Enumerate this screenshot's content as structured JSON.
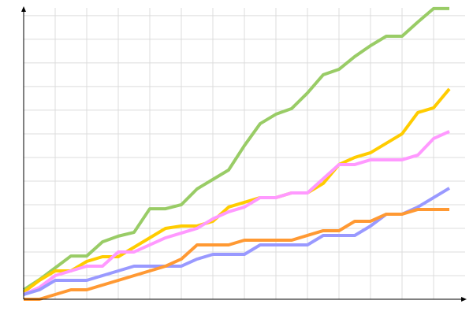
{
  "chart_data": {
    "type": "line",
    "x": [
      0,
      1,
      2,
      3,
      4,
      5,
      6,
      7,
      8,
      9,
      10,
      11,
      12,
      13,
      14,
      15,
      16,
      17,
      18,
      19,
      20,
      21,
      22,
      23,
      24,
      25,
      26,
      27
    ],
    "series": [
      {
        "color": "#99cc66",
        "values": [
          0.4,
          0.83,
          1.33,
          1.83,
          1.83,
          2.43,
          2.67,
          2.83,
          3.83,
          3.83,
          4.0,
          4.67,
          5.07,
          5.47,
          6.5,
          7.43,
          7.83,
          8.07,
          8.73,
          9.5,
          9.73,
          10.27,
          10.73,
          11.13,
          11.13,
          11.73,
          12.3,
          12.3
        ]
      },
      {
        "color": "#ffcc00",
        "values": [
          0.3,
          0.8,
          1.2,
          1.2,
          1.6,
          1.8,
          1.8,
          2.2,
          2.6,
          3.0,
          3.1,
          3.1,
          3.3,
          3.9,
          4.1,
          4.3,
          4.3,
          4.5,
          4.5,
          4.9,
          5.7,
          6.0,
          6.2,
          6.6,
          7.0,
          7.9,
          8.1,
          8.9
        ]
      },
      {
        "color": "#ff99ff",
        "values": [
          0.2,
          0.5,
          1.0,
          1.2,
          1.4,
          1.4,
          2.0,
          2.0,
          2.3,
          2.6,
          2.8,
          3.0,
          3.4,
          3.7,
          3.9,
          4.3,
          4.3,
          4.5,
          4.5,
          5.1,
          5.7,
          5.7,
          5.9,
          5.9,
          5.9,
          6.1,
          6.8,
          7.1
        ]
      },
      {
        "color": "#9999ff",
        "values": [
          0.2,
          0.4,
          0.8,
          0.8,
          0.8,
          1.0,
          1.2,
          1.4,
          1.4,
          1.4,
          1.4,
          1.7,
          1.9,
          1.9,
          1.9,
          2.3,
          2.3,
          2.3,
          2.3,
          2.7,
          2.7,
          2.7,
          3.1,
          3.6,
          3.6,
          3.9,
          4.3,
          4.7
        ]
      },
      {
        "color": "#ff9933",
        "values": [
          0,
          0,
          0.2,
          0.4,
          0.4,
          0.6,
          0.8,
          1.0,
          1.2,
          1.4,
          1.7,
          2.3,
          2.3,
          2.3,
          2.5,
          2.5,
          2.5,
          2.5,
          2.7,
          2.9,
          2.9,
          3.3,
          3.3,
          3.6,
          3.6,
          3.8,
          3.8,
          3.8
        ]
      }
    ],
    "xlim": [
      0,
      28
    ],
    "ylim": [
      0,
      12.33
    ],
    "xticks": [
      0,
      2,
      4,
      6,
      8,
      10,
      12,
      14,
      16,
      18,
      20,
      22,
      24,
      26
    ],
    "yticks": [
      0,
      1,
      2,
      3,
      4,
      5,
      6,
      7,
      8,
      9,
      10,
      11,
      12
    ],
    "grid": true
  }
}
